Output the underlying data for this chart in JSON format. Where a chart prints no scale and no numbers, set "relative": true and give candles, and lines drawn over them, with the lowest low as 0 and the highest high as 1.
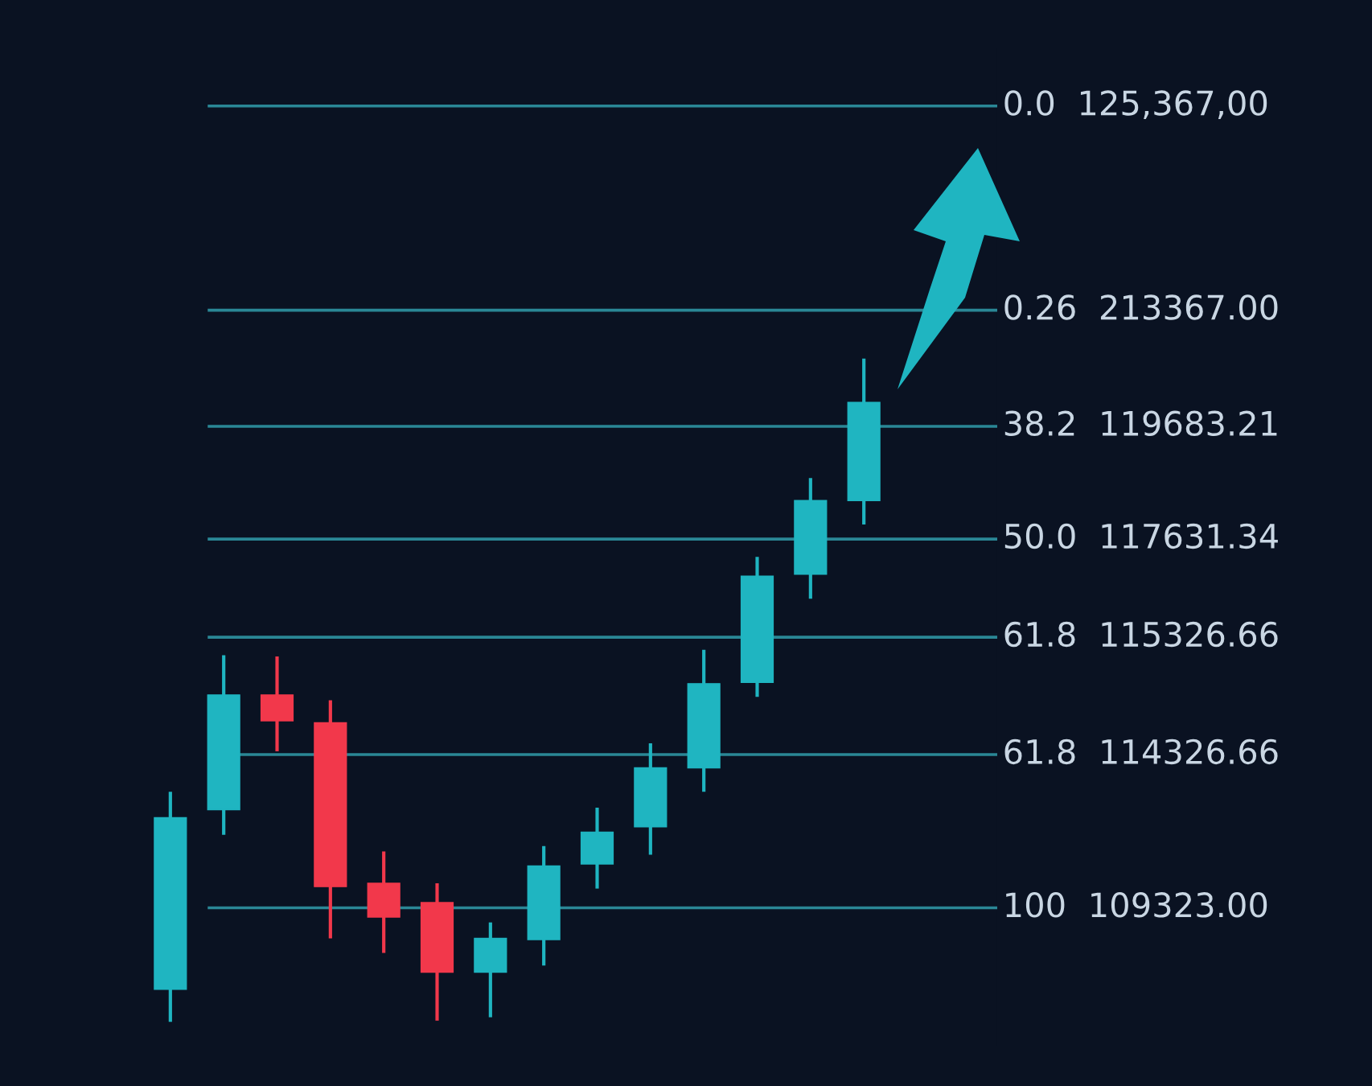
{
  "chart_data": {
    "type": "candlestick",
    "relative": true,
    "categories": [
      null,
      null,
      null,
      null,
      null,
      null,
      null,
      null,
      null,
      null,
      null,
      null,
      null,
      null
    ],
    "ohlc": [
      [
        0.049,
        0.347,
        0,
        0.308
      ],
      [
        0.32,
        0.553,
        0.282,
        0.493
      ],
      [
        0.493,
        0.551,
        0.408,
        0.454
      ],
      [
        0.451,
        0.485,
        0.126,
        0.204
      ],
      [
        0.209,
        0.257,
        0.104,
        0.158
      ],
      [
        0.18,
        0.209,
        0.002,
        0.075
      ],
      [
        0.075,
        0.15,
        0.007,
        0.126
      ],
      [
        0.124,
        0.265,
        0.085,
        0.235
      ],
      [
        0.238,
        0.323,
        0.201,
        0.286
      ],
      [
        0.294,
        0.42,
        0.252,
        0.383
      ],
      [
        0.383,
        0.561,
        0.347,
        0.51
      ],
      [
        0.512,
        0.701,
        0.49,
        0.672
      ],
      [
        0.675,
        0.82,
        0.638,
        0.786
      ],
      [
        0.786,
        1.0,
        0.75,
        0.934
      ]
    ],
    "colors": [
      "#1fb5c1",
      "#1fb5c1",
      "#f2384b",
      "#f2384b",
      "#f2384b",
      "#f2384b",
      "#1fb5c1",
      "#1fb5c1",
      "#1fb5c1",
      "#1fb5c1",
      "#1fb5c1",
      "#1fb5c1",
      "#1fb5c1",
      "#1fb5c1"
    ],
    "ref_lines": [
      {
        "axis": "y",
        "value": 1.381,
        "color": "#2a8796"
      },
      {
        "axis": "y",
        "value": 1.073,
        "color": "#2a8796"
      },
      {
        "axis": "y",
        "value": 0.898,
        "color": "#2a8796"
      },
      {
        "axis": "y",
        "value": 0.728,
        "color": "#2a8796"
      },
      {
        "axis": "y",
        "value": 0.58,
        "color": "#2a8796"
      },
      {
        "axis": "y",
        "value": 0.403,
        "color": "#2a8796"
      },
      {
        "axis": "y",
        "value": 0.172,
        "color": "#2a8796"
      }
    ],
    "annotations": [
      "0.0  125,367,00",
      "0.26  213367.00",
      "38.2  119683.21",
      "50.0  117631.34",
      "61.8  115326.66",
      "61.8  114326.66",
      "100  109323.00"
    ]
  }
}
